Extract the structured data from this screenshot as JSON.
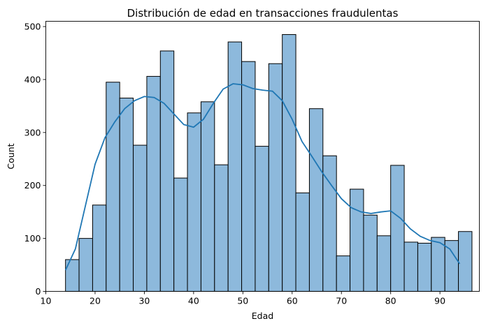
{
  "chart_data": {
    "type": "bar",
    "title": "Distribución de edad en transacciones fraudulentas",
    "xlabel": "Edad",
    "ylabel": "Count",
    "xlim": [
      10,
      98
    ],
    "ylim": [
      0,
      510
    ],
    "xticks": [
      10,
      20,
      30,
      40,
      50,
      60,
      70,
      80,
      90
    ],
    "yticks": [
      0,
      100,
      200,
      300,
      400,
      500
    ],
    "grid": false,
    "bin_width": 2.75,
    "bins": [
      {
        "start": 14.0,
        "end": 16.75,
        "count": 60
      },
      {
        "start": 16.75,
        "end": 19.5,
        "count": 100
      },
      {
        "start": 19.5,
        "end": 22.25,
        "count": 163
      },
      {
        "start": 22.25,
        "end": 25.0,
        "count": 395
      },
      {
        "start": 25.0,
        "end": 27.75,
        "count": 365
      },
      {
        "start": 27.75,
        "end": 30.5,
        "count": 276
      },
      {
        "start": 30.5,
        "end": 33.25,
        "count": 406
      },
      {
        "start": 33.25,
        "end": 36.0,
        "count": 454
      },
      {
        "start": 36.0,
        "end": 38.75,
        "count": 214
      },
      {
        "start": 38.75,
        "end": 41.5,
        "count": 337
      },
      {
        "start": 41.5,
        "end": 44.25,
        "count": 358
      },
      {
        "start": 44.25,
        "end": 47.0,
        "count": 239
      },
      {
        "start": 47.0,
        "end": 49.75,
        "count": 471
      },
      {
        "start": 49.75,
        "end": 52.5,
        "count": 434
      },
      {
        "start": 52.5,
        "end": 55.25,
        "count": 274
      },
      {
        "start": 55.25,
        "end": 58.0,
        "count": 430
      },
      {
        "start": 58.0,
        "end": 60.75,
        "count": 485
      },
      {
        "start": 60.75,
        "end": 63.5,
        "count": 186
      },
      {
        "start": 63.5,
        "end": 66.25,
        "count": 345
      },
      {
        "start": 66.25,
        "end": 69.0,
        "count": 256
      },
      {
        "start": 69.0,
        "end": 71.75,
        "count": 67
      },
      {
        "start": 71.75,
        "end": 74.5,
        "count": 193
      },
      {
        "start": 74.5,
        "end": 77.25,
        "count": 144
      },
      {
        "start": 77.25,
        "end": 80.0,
        "count": 105
      },
      {
        "start": 80.0,
        "end": 82.75,
        "count": 238
      },
      {
        "start": 82.75,
        "end": 85.5,
        "count": 93
      },
      {
        "start": 85.5,
        "end": 88.25,
        "count": 91
      },
      {
        "start": 88.25,
        "end": 91.0,
        "count": 102
      },
      {
        "start": 91.0,
        "end": 93.75,
        "count": 96
      },
      {
        "start": 93.75,
        "end": 96.5,
        "count": 113
      }
    ],
    "kde": {
      "x": [
        14,
        16,
        18,
        20,
        22,
        24,
        26,
        28,
        30,
        32,
        34,
        36,
        38,
        40,
        42,
        44,
        46,
        48,
        50,
        52,
        54,
        56,
        58,
        60,
        62,
        64,
        66,
        68,
        70,
        72,
        74,
        76,
        78,
        80,
        82,
        84,
        86,
        88,
        90,
        92,
        94
      ],
      "y": [
        40,
        80,
        160,
        240,
        290,
        320,
        345,
        360,
        368,
        366,
        355,
        335,
        315,
        310,
        325,
        355,
        382,
        392,
        390,
        383,
        380,
        378,
        360,
        325,
        283,
        255,
        226,
        200,
        175,
        158,
        150,
        147,
        150,
        152,
        138,
        118,
        104,
        96,
        92,
        80,
        52
      ]
    },
    "colors": {
      "bar_fill": "#8db9dc",
      "bar_edge": "#000000",
      "kde_line": "#1f77b4"
    }
  }
}
